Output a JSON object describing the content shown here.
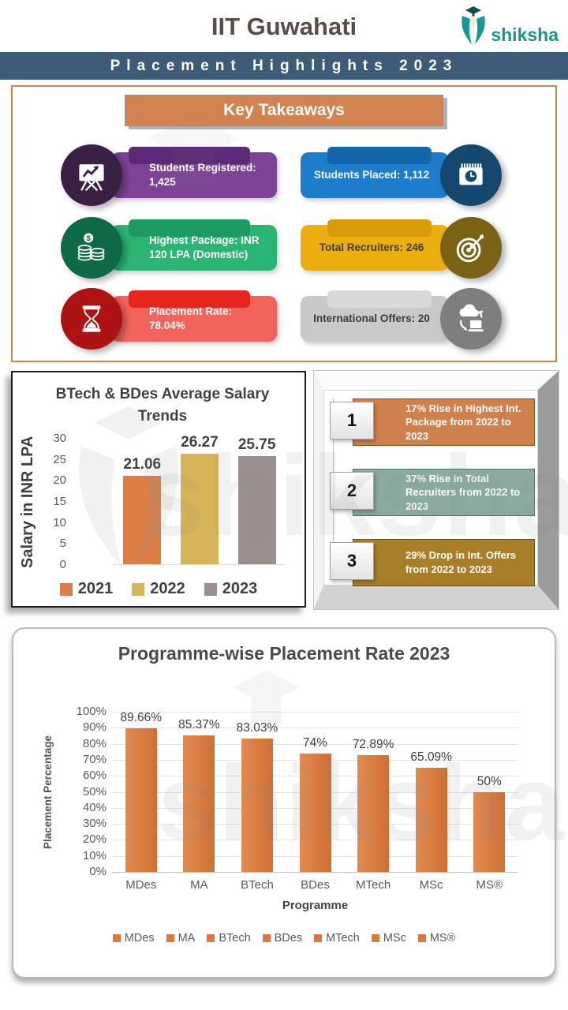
{
  "header": {
    "title": "IIT Guwahati",
    "logo": {
      "text": "shiksha",
      "color": "#17968e"
    }
  },
  "banner": {
    "text": "Placement Highlights 2023",
    "bg": "#3e5c78"
  },
  "key_takeaways": {
    "title": "Key Takeaways",
    "accent_color": "#d3834f",
    "items": [
      {
        "id": "students-registered",
        "text": "Students Registered: 1,425",
        "icon": "presentation-chart",
        "side": "left",
        "circle": "#3a2144",
        "pill": "#7e4396",
        "tab": "#5c2a78",
        "text_color": "#ffffff"
      },
      {
        "id": "students-placed",
        "text": "Students Placed: 1,112",
        "icon": "calendar-clock",
        "side": "right",
        "circle": "#15486f",
        "pill": "#1d7ccc",
        "tab": "#1466ab",
        "text_color": "#ffffff"
      },
      {
        "id": "highest-package",
        "text": "Highest Package: INR 120 LPA (Domestic)",
        "icon": "coins",
        "side": "left",
        "circle": "#0e6a44",
        "pill": "#2ab573",
        "tab": "#1b9b5f",
        "text_color": "#ffffff"
      },
      {
        "id": "total-recruiters",
        "text": "Total Recruiters: 246",
        "icon": "target-arrow",
        "side": "right",
        "circle": "#7a6114",
        "pill": "#ecae0f",
        "tab": "#d89c08",
        "text_color": "#3c3c3c"
      },
      {
        "id": "placement-rate",
        "text": "Placement Rate: 78.04%",
        "icon": "hourglass",
        "side": "left",
        "circle": "#ae1313",
        "pill": "#f2635c",
        "tab": "#e6261d",
        "text_color": "#ffffff"
      },
      {
        "id": "international-offers",
        "text": "International Offers: 20",
        "icon": "cloud-laptop",
        "side": "right",
        "circle": "#7e7e7e",
        "pill": "#c9c9c9",
        "tab": "#d9d9d9",
        "text_color": "#3c3c3c"
      }
    ]
  },
  "callouts": {
    "items": [
      {
        "number": "1",
        "text": "17% Rise in Highest Int. Package from 2022 to 2023",
        "bg": "#d0804d",
        "border": "#8a4a20"
      },
      {
        "number": "2",
        "text": "37% Rise in Total Recruiters from 2022 to 2023",
        "bg": "#8aab9e",
        "border": "#4e6e63"
      },
      {
        "number": "3",
        "text": "29% Drop in Int. Offers from 2022 to 2023",
        "bg": "#a87f28",
        "border": "#6b4e14"
      }
    ]
  },
  "chart_data": [
    {
      "id": "salary_trends",
      "type": "bar",
      "title": "BTech & BDes Average Salary Trends",
      "xlabel": "",
      "ylabel": "Salary in INR LPA",
      "categories": [
        "2021",
        "2022",
        "2023"
      ],
      "values": [
        21.06,
        26.27,
        25.75
      ],
      "value_labels": [
        "21.06",
        "26.27",
        "25.75"
      ],
      "colors": [
        "#dd7e44",
        "#d8b458",
        "#9c908e"
      ],
      "ylim": [
        0,
        30
      ],
      "yticks": [
        "30",
        "25",
        "20",
        "15",
        "10",
        "5",
        "0"
      ],
      "grid": false,
      "legend_position": "bottom"
    },
    {
      "id": "programme_rate",
      "type": "bar",
      "title": "Programme-wise Placement Rate 2023",
      "xlabel": "Programme",
      "ylabel": "Placement Percentage",
      "categories": [
        "MDes",
        "MA",
        "BTech",
        "BDes",
        "MTech",
        "MSc",
        "MS®"
      ],
      "values": [
        89.66,
        85.37,
        83.03,
        74,
        72.89,
        65.09,
        50
      ],
      "value_labels": [
        "89.66%",
        "85.37%",
        "83.03%",
        "74%",
        "72.89%",
        "65.09%",
        "50%"
      ],
      "bar_color": "#d9783f",
      "ylim": [
        0,
        100
      ],
      "yticks": [
        "100%",
        "90%",
        "80%",
        "70%",
        "60%",
        "50%",
        "40%",
        "30%",
        "20%",
        "10%",
        "0%"
      ],
      "grid": true,
      "legend_position": "bottom"
    }
  ],
  "watermark": {
    "text": "shiksha"
  }
}
